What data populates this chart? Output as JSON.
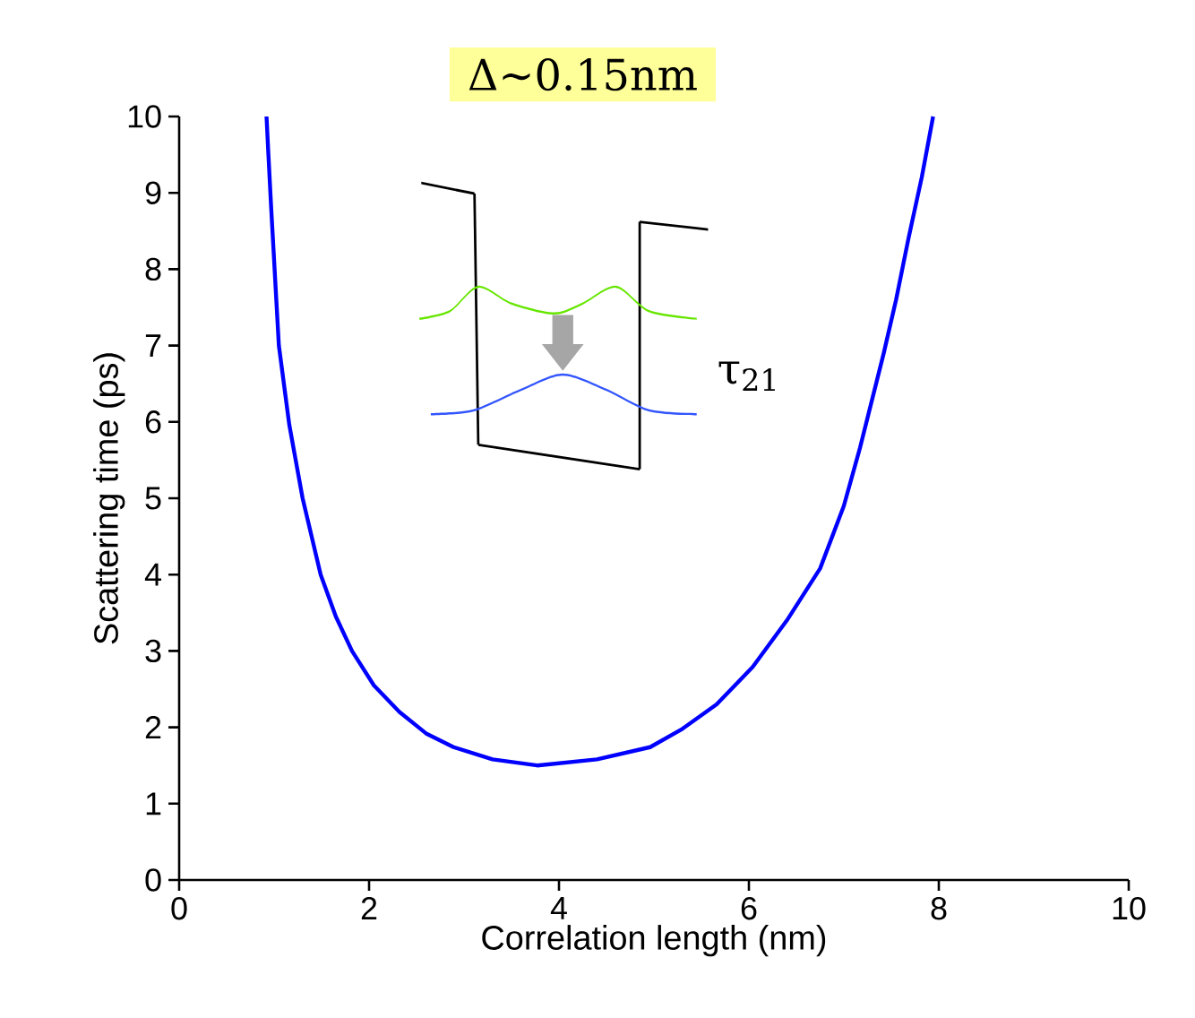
{
  "chart_data": {
    "type": "line",
    "xlabel": "Correlation length (nm)",
    "ylabel": "Scattering time (ps)",
    "x": [
      0.92,
      0.94,
      0.97,
      1.05,
      1.16,
      1.3,
      1.49,
      1.65,
      1.82,
      2.05,
      2.32,
      2.6,
      2.89,
      3.3,
      3.77,
      4.4,
      4.96,
      5.3,
      5.66,
      6.04,
      6.4,
      6.75,
      7.0,
      7.17,
      7.42,
      7.55,
      7.68,
      7.82,
      7.94
    ],
    "series": [
      {
        "color": "#0000ff",
        "values": [
          10,
          9.5,
          8.78,
          7.0,
          5.96,
          5.0,
          4.0,
          3.45,
          3.0,
          2.55,
          2.2,
          1.92,
          1.74,
          1.58,
          1.5,
          1.58,
          1.74,
          1.98,
          2.3,
          2.79,
          3.4,
          4.08,
          4.9,
          5.66,
          6.9,
          7.6,
          8.4,
          9.2,
          10
        ]
      }
    ],
    "xlim": [
      0,
      10
    ],
    "ylim": [
      0,
      10
    ],
    "xticks": [
      0,
      2,
      4,
      6,
      8,
      10
    ],
    "yticks": [
      0,
      1,
      2,
      3,
      4,
      5,
      6,
      7,
      8,
      9,
      10
    ],
    "annotations": [
      "Δ~0.15nm",
      "τ$_{21}$"
    ]
  }
}
